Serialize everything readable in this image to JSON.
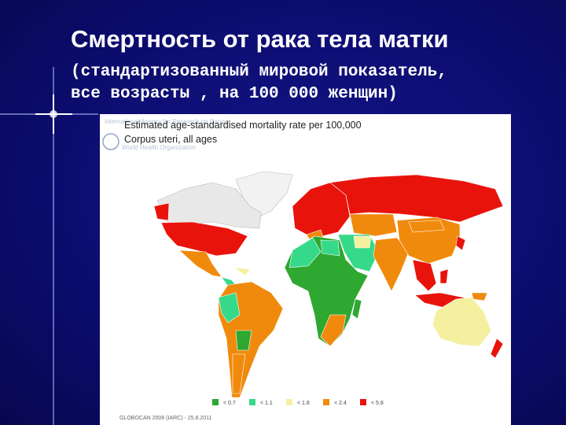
{
  "header": {
    "title": "Смертность от рака тела матки",
    "subtitle_lines": [
      "(стандартизованный мировой показатель,",
      "все возрасты , на 100 000 женщин)"
    ]
  },
  "map": {
    "agency": "International Agency for Research on Cancer",
    "organization": "World Health Organization",
    "title_lines": [
      "Estimated age-standardised mortality rate per 100,000",
      "Corpus uteri, all ages"
    ],
    "legend": [
      {
        "label": "< 0.7",
        "color": "#2ea830"
      },
      {
        "label": "< 1.1",
        "color": "#36d98a"
      },
      {
        "label": "< 1.8",
        "color": "#f5f0a0"
      },
      {
        "label": "< 2.4",
        "color": "#f08a0c"
      },
      {
        "label": "< 5.8",
        "color": "#e8140c"
      }
    ],
    "source": "GLOBOCAN 2008 (IARC) - 25.8.2011"
  }
}
